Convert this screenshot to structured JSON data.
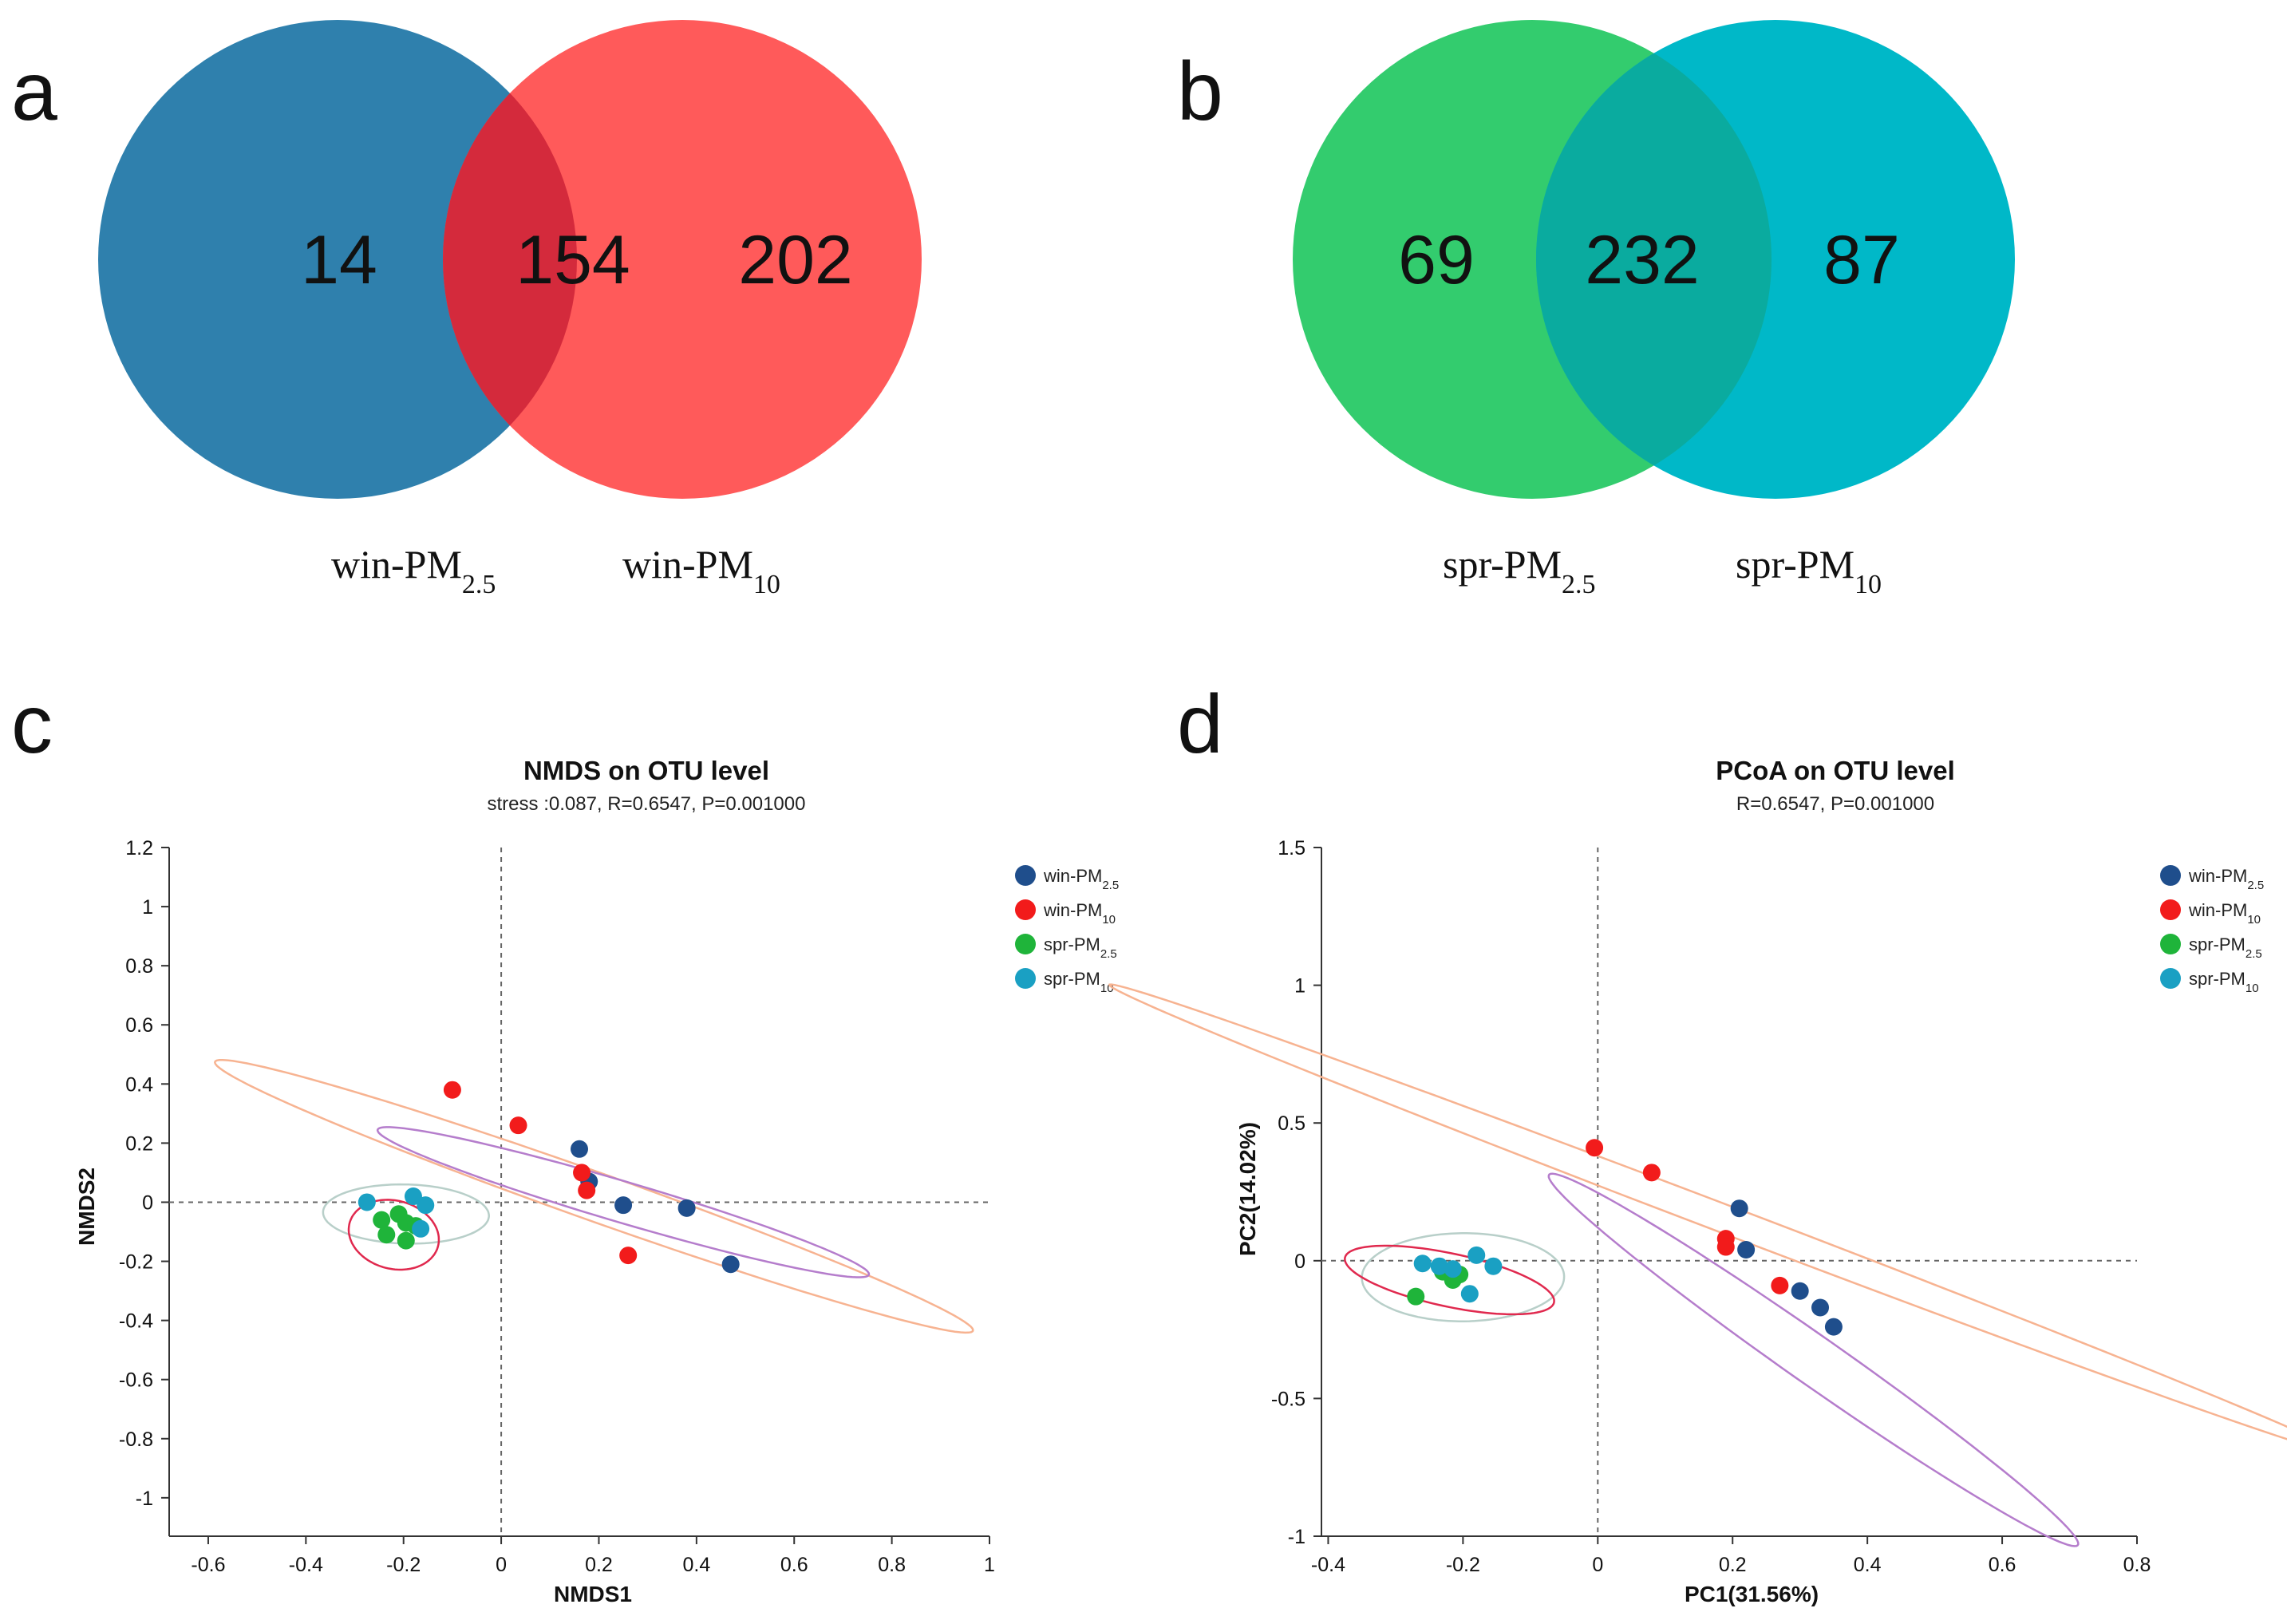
{
  "panel_labels": {
    "a": "a",
    "b": "b",
    "c": "c",
    "d": "d"
  },
  "colors": {
    "win_pm25": "#1f4e8c",
    "win_pm10": "#f21b1b",
    "spr_pm25": "#1fb43a",
    "spr_pm10": "#1aa0c3",
    "venn_win_pm25": "#2f80ad",
    "venn_win_pm10": "#ff5a5a",
    "venn_win_overlap": "#d42a3c",
    "venn_spr_pm25": "#33cc6e",
    "venn_spr_pm10": "#00b8c8",
    "venn_spr_overlap": "#0aab9f",
    "ellipse_win_pm25": "#b57dcc",
    "ellipse_win_pm10": "#f7b391",
    "ellipse_spr_pm25": "#e0294e",
    "ellipse_spr_pm10": "#b8cfc9"
  },
  "venn": [
    {
      "left_only": "14",
      "shared": "154",
      "right_only": "202",
      "left_label": {
        "base": "win-PM",
        "sub": "2.5"
      },
      "right_label": {
        "base": "win-PM",
        "sub": "10"
      }
    },
    {
      "left_only": "69",
      "shared": "232",
      "right_only": "87",
      "left_label": {
        "base": "spr-PM",
        "sub": "2.5"
      },
      "right_label": {
        "base": "spr-PM",
        "sub": "10"
      }
    }
  ],
  "legend": [
    {
      "base": "win-PM",
      "sub": "2.5",
      "color_key": "win_pm25"
    },
    {
      "base": "win-PM",
      "sub": "10",
      "color_key": "win_pm10"
    },
    {
      "base": "spr-PM",
      "sub": "2.5",
      "color_key": "spr_pm25"
    },
    {
      "base": "spr-PM",
      "sub": "10",
      "color_key": "spr_pm10"
    }
  ],
  "chart_data": [
    {
      "type": "scatter",
      "title": "NMDS on OTU level",
      "subtitle": "stress :0.087, R=0.6547, P=0.001000",
      "xlabel": "NMDS1",
      "ylabel": "NMDS2",
      "xlim": [
        -0.68,
        1.0
      ],
      "ylim": [
        -1.13,
        1.2
      ],
      "xticks": [
        -0.6,
        -0.4,
        -0.2,
        0,
        0.2,
        0.4,
        0.6,
        0.8,
        1
      ],
      "xtick_labels": [
        "-0.6",
        "-0.4",
        "-0.2",
        "0",
        "0.2",
        "0.4",
        "0.6",
        "0.8",
        "1"
      ],
      "yticks": [
        1.2,
        1,
        0.8,
        0.6,
        0.4,
        0.2,
        0,
        -0.2,
        -0.4,
        -0.6,
        -0.8,
        -1
      ],
      "ytick_labels": [
        "1.2",
        "1",
        "0.8",
        "0.6",
        "0.4",
        "0.2",
        "0",
        "-0.2",
        "-0.4",
        "-0.6",
        "-0.8",
        "-1"
      ],
      "series": [
        {
          "name": "win-PM2.5",
          "color_key": "win_pm25",
          "points": [
            [
              0.16,
              0.18
            ],
            [
              0.18,
              0.07
            ],
            [
              0.25,
              -0.01
            ],
            [
              0.38,
              -0.02
            ],
            [
              0.47,
              -0.21
            ]
          ]
        },
        {
          "name": "win-PM10",
          "color_key": "win_pm10",
          "points": [
            [
              -0.1,
              0.38
            ],
            [
              0.035,
              0.26
            ],
            [
              0.165,
              0.1
            ],
            [
              0.175,
              0.04
            ],
            [
              0.26,
              -0.18
            ]
          ]
        },
        {
          "name": "spr-PM2.5",
          "color_key": "spr_pm25",
          "points": [
            [
              -0.245,
              -0.06
            ],
            [
              -0.235,
              -0.11
            ],
            [
              -0.21,
              -0.04
            ],
            [
              -0.195,
              -0.07
            ],
            [
              -0.195,
              -0.13
            ],
            [
              -0.175,
              -0.08
            ]
          ]
        },
        {
          "name": "spr-PM10",
          "color_key": "spr_pm10",
          "points": [
            [
              -0.275,
              0.0
            ],
            [
              -0.18,
              0.02
            ],
            [
              -0.165,
              -0.09
            ],
            [
              -0.155,
              -0.01
            ]
          ]
        }
      ],
      "ellipses": [
        {
          "group": "win-PM10",
          "color_key": "ellipse_win_pm10",
          "cx": 0.19,
          "cy": 0.02,
          "rx": 0.9,
          "ry": 0.075,
          "angle_deg": -30.5
        },
        {
          "group": "win-PM2.5",
          "color_key": "ellipse_win_pm25",
          "cx": 0.25,
          "cy": 0.0,
          "rx": 0.56,
          "ry": 0.065,
          "angle_deg": -26.2
        },
        {
          "group": "spr-PM10",
          "color_key": "ellipse_spr_pm10",
          "cx": -0.195,
          "cy": -0.04,
          "rx": 0.17,
          "ry": 0.1,
          "angle_deg": -3
        },
        {
          "group": "spr-PM2.5",
          "color_key": "ellipse_spr_pm25",
          "cx": -0.22,
          "cy": -0.11,
          "rx": 0.09,
          "ry": 0.12,
          "angle_deg": 15
        }
      ]
    },
    {
      "type": "scatter",
      "title": "PCoA on OTU level",
      "subtitle": "R=0.6547, P=0.001000",
      "xlabel": "PC1(31.56%)",
      "ylabel": "PC2(14.02%)",
      "xlim": [
        -0.41,
        0.8
      ],
      "ylim": [
        -1.0,
        1.5
      ],
      "xticks": [
        -0.4,
        -0.2,
        0,
        0.2,
        0.4,
        0.6,
        0.8
      ],
      "xtick_labels": [
        "-0.4",
        "-0.2",
        "0",
        "0.2",
        "0.4",
        "0.6",
        "0.8"
      ],
      "yticks": [
        1.5,
        1,
        0.5,
        0,
        -0.5,
        -1
      ],
      "ytick_labels": [
        "1.5",
        "1",
        "0.5",
        "0",
        "-0.5",
        "-1"
      ],
      "series": [
        {
          "name": "win-PM2.5",
          "color_key": "win_pm25",
          "points": [
            [
              0.21,
              0.19
            ],
            [
              0.22,
              0.04
            ],
            [
              0.3,
              -0.11
            ],
            [
              0.33,
              -0.17
            ],
            [
              0.35,
              -0.24
            ]
          ]
        },
        {
          "name": "win-PM10",
          "color_key": "win_pm10",
          "points": [
            [
              -0.005,
              0.41
            ],
            [
              0.08,
              0.32
            ],
            [
              0.19,
              0.08
            ],
            [
              0.19,
              0.05
            ],
            [
              0.27,
              -0.09
            ]
          ]
        },
        {
          "name": "spr-PM2.5",
          "color_key": "spr_pm25",
          "points": [
            [
              -0.27,
              -0.13
            ],
            [
              -0.23,
              -0.04
            ],
            [
              -0.215,
              -0.07
            ],
            [
              -0.205,
              -0.05
            ]
          ]
        },
        {
          "name": "spr-PM10",
          "color_key": "spr_pm10",
          "points": [
            [
              -0.26,
              -0.01
            ],
            [
              -0.235,
              -0.02
            ],
            [
              -0.215,
              -0.03
            ],
            [
              -0.19,
              -0.12
            ],
            [
              -0.18,
              0.02
            ],
            [
              -0.155,
              -0.02
            ]
          ]
        }
      ],
      "ellipses": [
        {
          "group": "win-PM10",
          "color_key": "ellipse_win_pm10",
          "cx": 0.19,
          "cy": 0.15,
          "rx": 1.25,
          "ry": 0.04,
          "angle_deg": -43
        },
        {
          "group": "win-PM2.5",
          "color_key": "ellipse_win_pm25",
          "cx": 0.32,
          "cy": -0.36,
          "rx": 0.78,
          "ry": 0.055,
          "angle_deg": -60
        },
        {
          "group": "spr-PM10",
          "color_key": "ellipse_spr_pm10",
          "cx": -0.2,
          "cy": -0.06,
          "rx": 0.15,
          "ry": 0.16,
          "angle_deg": -5
        },
        {
          "group": "spr-PM2.5",
          "color_key": "ellipse_spr_pm25",
          "cx": -0.22,
          "cy": -0.07,
          "rx": 0.085,
          "ry": 0.18,
          "angle_deg": 55
        }
      ]
    }
  ]
}
